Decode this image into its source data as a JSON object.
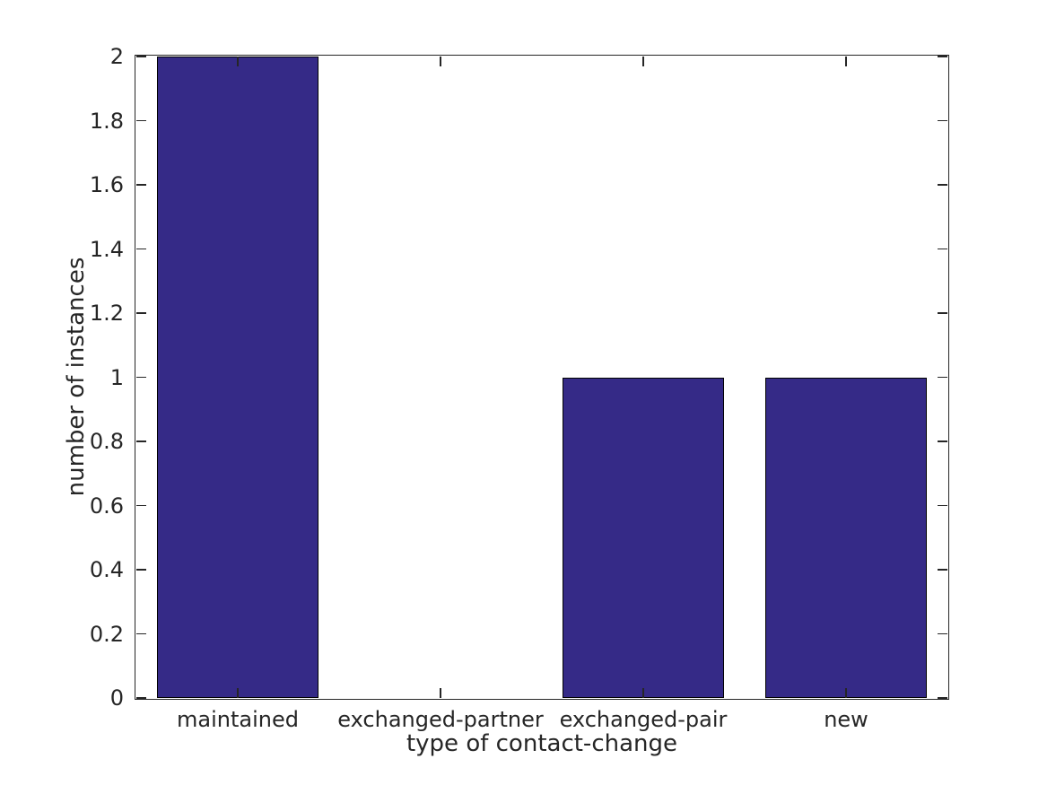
{
  "chart_data": {
    "type": "bar",
    "title": "",
    "categories": [
      "maintained",
      "exchanged-partner",
      "exchanged-pair",
      "new"
    ],
    "values": [
      2,
      0,
      1,
      1
    ],
    "xlabel": "type of contact-change",
    "ylabel": "number of instances",
    "ylim": [
      0,
      2
    ],
    "ytick_labels": [
      "0",
      "0.2",
      "0.4",
      "0.6",
      "0.8",
      "1",
      "1.2",
      "1.4",
      "1.6",
      "1.8",
      "2"
    ],
    "bar_width_fraction": 0.8,
    "grid": false,
    "legend": false,
    "tick_direction": "in",
    "box": true,
    "colors": {
      "bar_fill": "#352A87",
      "bar_edge": "#000000",
      "axis": "#262626",
      "text": "#262626",
      "background": "#FFFFFF"
    }
  }
}
